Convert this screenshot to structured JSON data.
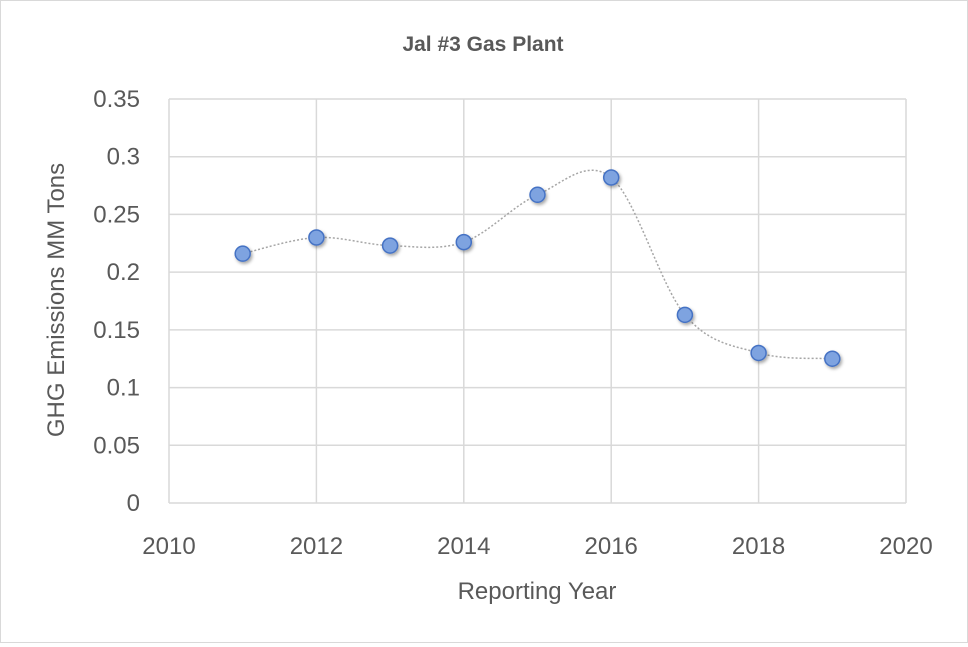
{
  "chart_data": {
    "type": "scatter",
    "title": "Jal #3 Gas Plant",
    "xlabel": "Reporting Year",
    "ylabel": "GHG Emissions MM Tons",
    "xlim": [
      2010,
      2020
    ],
    "ylim": [
      0,
      0.35
    ],
    "x_ticks": [
      "2010",
      "2012",
      "2014",
      "2016",
      "2018",
      "2020"
    ],
    "y_ticks": [
      "0",
      "0.05",
      "0.1",
      "0.15",
      "0.2",
      "0.25",
      "0.3",
      "0.35"
    ],
    "grid": true,
    "legend": "none",
    "smoothed_line": true,
    "series": [
      {
        "name": "GHG Emissions",
        "x": [
          2011,
          2012,
          2013,
          2014,
          2015,
          2016,
          2017,
          2018,
          2019
        ],
        "y": [
          0.216,
          0.23,
          0.223,
          0.226,
          0.267,
          0.282,
          0.163,
          0.13,
          0.125
        ]
      }
    ],
    "colors": {
      "marker_fill": "#7ea3e0",
      "marker_stroke": "#4472c4",
      "line": "#a6a6a6",
      "grid": "#d9d9d9",
      "text": "#595959"
    }
  }
}
